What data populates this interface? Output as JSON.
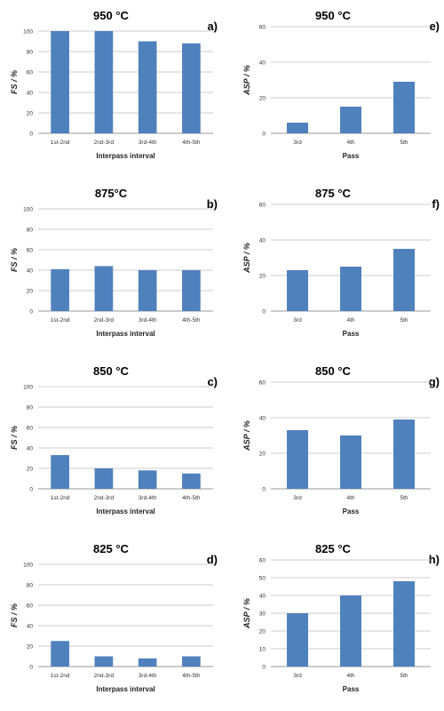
{
  "chart_data": [
    {
      "id": "a",
      "type": "bar",
      "title": "950 °C",
      "panel_label": "a)",
      "xlabel": "Interpass interval",
      "ylabel": "FS / %",
      "ylim": [
        0,
        100
      ],
      "yticks": [
        0,
        20,
        40,
        60,
        80,
        100
      ],
      "categories": [
        "1st-2nd",
        "2nd-3rd",
        "3rd-4th",
        "4th-5th"
      ],
      "values": [
        100,
        100,
        90,
        88
      ],
      "color": "#4f81bd",
      "grid": true
    },
    {
      "id": "e",
      "type": "bar",
      "title": "950 °C",
      "panel_label": "e)",
      "xlabel": "Pass",
      "ylabel": "ASP / %",
      "ylim": [
        0,
        60
      ],
      "yticks": [
        0,
        20,
        40,
        60
      ],
      "categories": [
        "3rd",
        "4th",
        "5th"
      ],
      "values": [
        6,
        15,
        29
      ],
      "color": "#4f81bd",
      "grid": true
    },
    {
      "id": "b",
      "type": "bar",
      "title": "875°C",
      "panel_label": "b)",
      "xlabel": "Interpass interval",
      "ylabel": "FS / %",
      "ylim": [
        0,
        100
      ],
      "yticks": [
        0,
        20,
        40,
        60,
        80,
        100
      ],
      "categories": [
        "1st-2nd",
        "2nd-3rd",
        "3rd-4th",
        "4th-5th"
      ],
      "values": [
        41,
        44,
        40,
        40
      ],
      "color": "#4f81bd",
      "grid": true
    },
    {
      "id": "f",
      "type": "bar",
      "title": "875 °C",
      "panel_label": "f)",
      "xlabel": "Pass",
      "ylabel": "ASP / %",
      "ylim": [
        0,
        60
      ],
      "yticks": [
        0,
        20,
        40,
        60
      ],
      "categories": [
        "3rd",
        "4th",
        "5th"
      ],
      "values": [
        23,
        25,
        35
      ],
      "color": "#4f81bd",
      "grid": true
    },
    {
      "id": "c",
      "type": "bar",
      "title": "850 °C",
      "panel_label": "c)",
      "xlabel": "Interpass interval",
      "ylabel": "FS / %",
      "ylim": [
        0,
        100
      ],
      "yticks": [
        0,
        20,
        40,
        60,
        80,
        100
      ],
      "categories": [
        "1st-2nd",
        "2nd-3rd",
        "3rd-4th",
        "4th-5th"
      ],
      "values": [
        33,
        20,
        18,
        15
      ],
      "color": "#4f81bd",
      "grid": true
    },
    {
      "id": "g",
      "type": "bar",
      "title": "850 °C",
      "panel_label": "g)",
      "xlabel": "Pass",
      "ylabel": "ASP / %",
      "ylim": [
        0,
        60
      ],
      "yticks": [
        0,
        20,
        40,
        60
      ],
      "categories": [
        "3rd",
        "4th",
        "5th"
      ],
      "values": [
        33,
        30,
        39
      ],
      "color": "#4f81bd",
      "grid": true
    },
    {
      "id": "d",
      "type": "bar",
      "title": "825 °C",
      "panel_label": "d)",
      "xlabel": "Interpass interval",
      "ylabel": "FS / %",
      "ylim": [
        0,
        100
      ],
      "yticks": [
        0,
        20,
        40,
        60,
        80,
        100
      ],
      "categories": [
        "1st-2nd",
        "2nd-3rd",
        "3rd-4th",
        "4th-5th"
      ],
      "values": [
        25,
        10,
        8,
        10
      ],
      "color": "#4f81bd",
      "grid": true
    },
    {
      "id": "h",
      "type": "bar",
      "title": "825 °C",
      "panel_label": "h)",
      "xlabel": "Pass",
      "ylabel": "ASP / %",
      "ylim": [
        0,
        60
      ],
      "yticks": [
        0,
        10,
        20,
        30,
        40,
        50,
        60
      ],
      "categories": [
        "3rd",
        "4th",
        "5th"
      ],
      "values": [
        30,
        40,
        48
      ],
      "color": "#4f81bd",
      "grid": true
    }
  ]
}
